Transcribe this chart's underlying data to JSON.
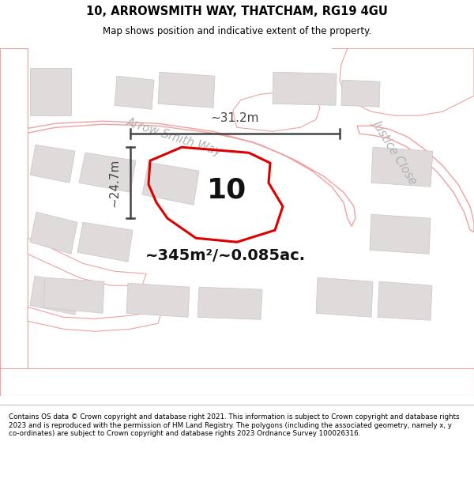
{
  "title_line1": "10, ARROWSMITH WAY, THATCHAM, RG19 4GU",
  "title_line2": "Map shows position and indicative extent of the property.",
  "footer": "Contains OS data © Crown copyright and database right 2021. This information is subject to Crown copyright and database rights 2023 and is reproduced with the permission of HM Land Registry. The polygons (including the associated geometry, namely x, y co-ordinates) are subject to Crown copyright and database rights 2023 Ordnance Survey 100026316.",
  "area_label": "~345m²/~0.085ac.",
  "width_label": "~31.2m",
  "height_label": "~24.7m",
  "number_label": "10",
  "bg_color": "#f2eded",
  "map_bg": "#f2eded",
  "road_fill": "#ffffff",
  "road_stroke": "#f0a0a0",
  "building_fill": "#e0dbdb",
  "building_stroke": "#d0c8c8",
  "property_stroke": "#dd0000",
  "property_fill": "none",
  "dim_color": "#444444",
  "road_label_color": "#b0b0b0",
  "title_color": "#000000",
  "footer_color": "#000000",
  "road_label_arrow_smith": "Arrow Smith Way",
  "road_label_justice": "Justice Close",
  "title_fontsize": 10.5,
  "subtitle_fontsize": 8.5,
  "footer_fontsize": 6.3
}
